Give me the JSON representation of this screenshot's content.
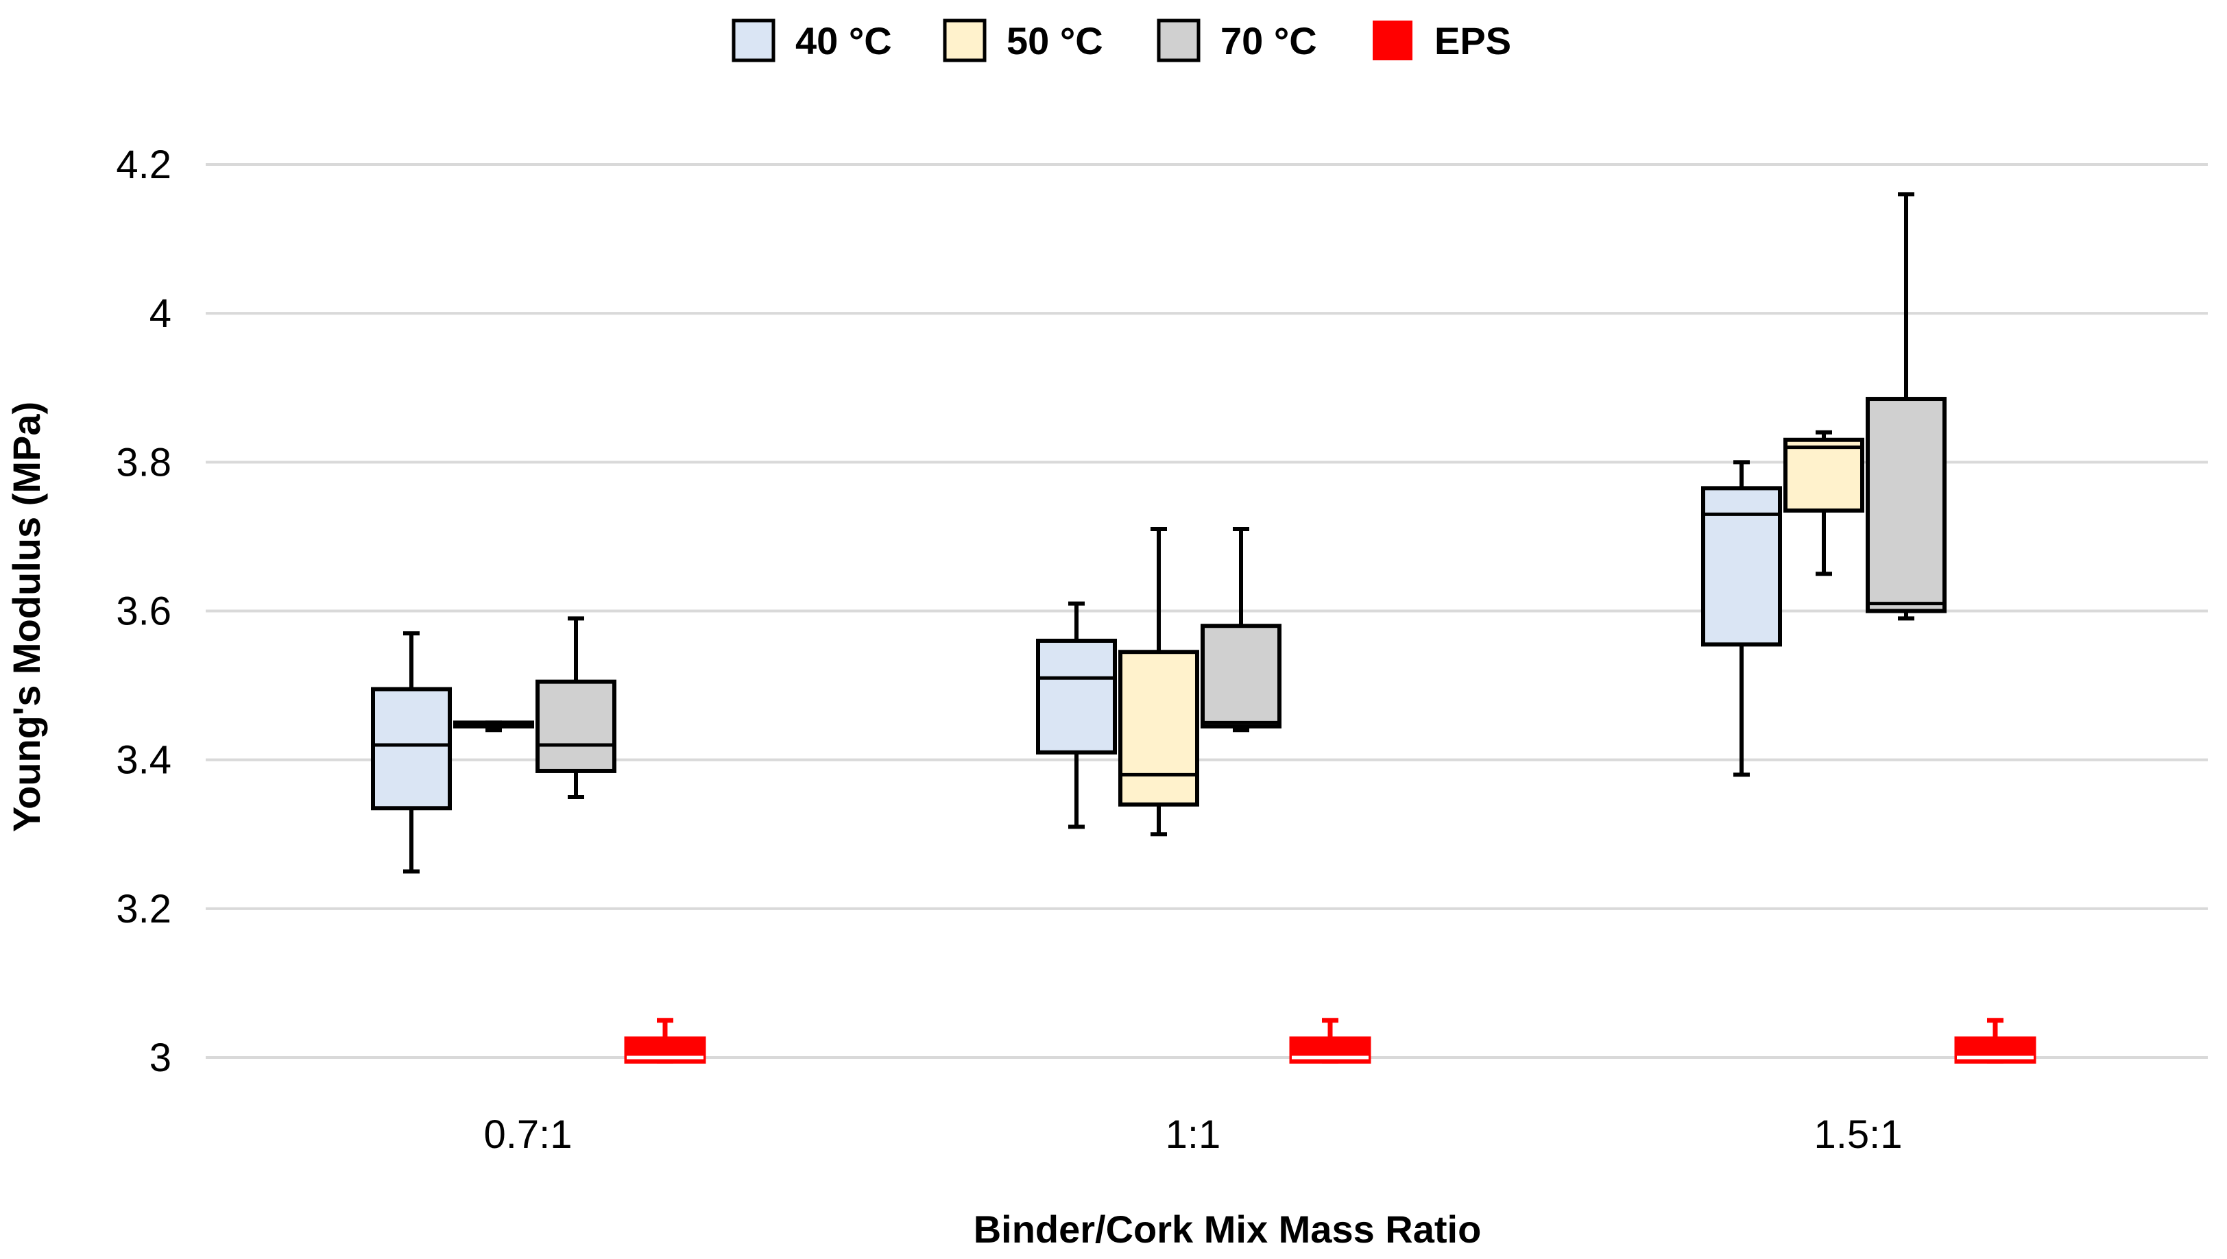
{
  "chart_data": {
    "type": "box",
    "title": "",
    "xlabel": "Binder/Cork Mix Mass Ratio",
    "ylabel": "Young's Modulus (MPa)",
    "ylim": [
      3,
      4.2
    ],
    "yticks": [
      3,
      3.2,
      3.4,
      3.6,
      3.8,
      4,
      4.2
    ],
    "ytick_labels": [
      "3",
      "3.2",
      "3.4",
      "3.6",
      "3.8",
      "4",
      "4.2"
    ],
    "grid": true,
    "legend_position": "top-center",
    "categories": [
      "0.7:1",
      "1:1",
      "1.5:1"
    ],
    "series": [
      {
        "name": "40 °C",
        "color": "#dae5f4",
        "stats": [
          {
            "min": 3.25,
            "q1": 3.335,
            "median": 3.42,
            "q3": 3.495,
            "max": 3.57
          },
          {
            "min": 3.31,
            "q1": 3.41,
            "median": 3.51,
            "q3": 3.56,
            "max": 3.61
          },
          {
            "min": 3.38,
            "q1": 3.555,
            "median": 3.73,
            "q3": 3.765,
            "max": 3.8
          }
        ]
      },
      {
        "name": "50 °C",
        "color": "#fff2cc",
        "stats": [
          {
            "min": 3.44,
            "q1": 3.445,
            "median": 3.445,
            "q3": 3.45,
            "max": 3.45
          },
          {
            "min": 3.3,
            "q1": 3.34,
            "median": 3.38,
            "q3": 3.545,
            "max": 3.71
          },
          {
            "min": 3.65,
            "q1": 3.735,
            "median": 3.82,
            "q3": 3.83,
            "max": 3.84
          }
        ]
      },
      {
        "name": "70 °C",
        "color": "#d0d0d0",
        "stats": [
          {
            "min": 3.35,
            "q1": 3.385,
            "median": 3.42,
            "q3": 3.505,
            "max": 3.59
          },
          {
            "min": 3.44,
            "q1": 3.445,
            "median": 3.45,
            "q3": 3.58,
            "max": 3.71
          },
          {
            "min": 3.59,
            "q1": 3.6,
            "median": 3.61,
            "q3": 3.885,
            "max": 4.16
          }
        ]
      },
      {
        "name": "EPS",
        "color": "#ff0000",
        "stats": [
          {
            "min": 2.995,
            "q1": 2.995,
            "median": 3.0,
            "q3": 3.025,
            "max": 3.05
          },
          {
            "min": 2.995,
            "q1": 2.995,
            "median": 3.0,
            "q3": 3.025,
            "max": 3.05
          },
          {
            "min": 2.995,
            "q1": 2.995,
            "median": 3.0,
            "q3": 3.025,
            "max": 3.05
          }
        ]
      }
    ]
  }
}
